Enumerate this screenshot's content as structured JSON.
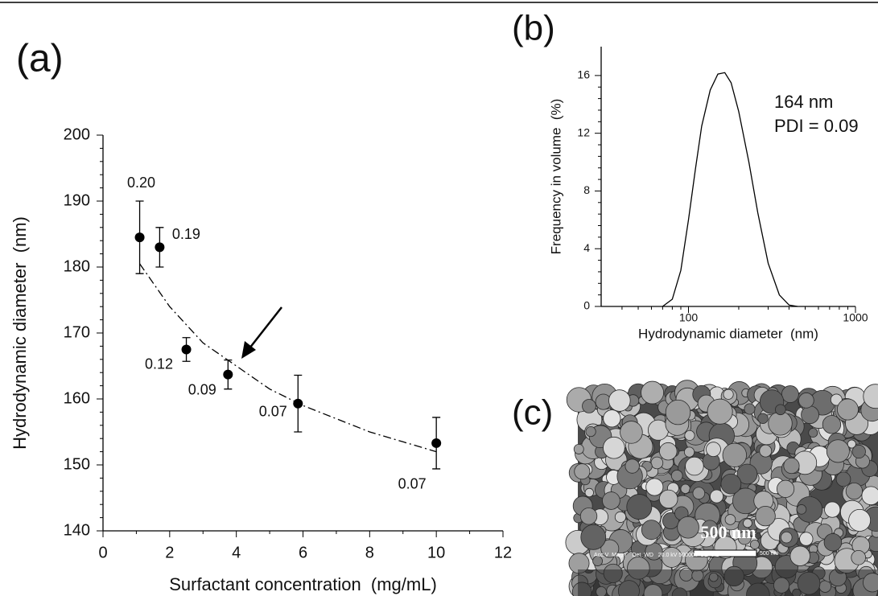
{
  "chart_data": [
    {
      "type": "scatter",
      "panel": "(a)",
      "x_label": "Surfactant concentration  (mg/mL)",
      "y_label": "Hydrodynamic diameter  (nm)",
      "x": [
        1.1,
        1.7,
        2.5,
        3.75,
        5.85,
        10.0
      ],
      "values": [
        184.5,
        183,
        167.5,
        163.7,
        159.3,
        153.3
      ],
      "errors": [
        5.5,
        3,
        1.8,
        2.2,
        4.3,
        3.9
      ],
      "point_labels": [
        "0.20",
        "0.19",
        "0.12",
        "0.09",
        "0.07",
        "0.07"
      ],
      "fit": {
        "x": [
          1.1,
          2,
          3,
          4,
          5,
          6,
          7,
          8,
          9,
          10
        ],
        "values": [
          180.5,
          174,
          168.5,
          165,
          161.5,
          159,
          157,
          155,
          153.5,
          152
        ]
      },
      "color": "#000000",
      "xlim": [
        0,
        12
      ],
      "xticks": [
        0,
        2,
        4,
        6,
        8,
        10,
        12
      ],
      "ylim": [
        140,
        200
      ],
      "yticks": [
        140,
        150,
        160,
        170,
        180,
        190,
        200
      ]
    },
    {
      "type": "line",
      "panel": "(b)",
      "x_label": "Hydrodynamic diameter  (nm)",
      "y_label": "Frequency in volume  (%)",
      "annotations": [
        "164 nm",
        "PDI = 0.09"
      ],
      "x": [
        70,
        80,
        90,
        100,
        110,
        120,
        135,
        150,
        165,
        180,
        200,
        230,
        260,
        300,
        350,
        400,
        450
      ],
      "values": [
        0,
        0.5,
        2.5,
        6,
        9.5,
        12.5,
        15,
        16.1,
        16.2,
        15.5,
        13.5,
        10,
        6.5,
        3,
        0.8,
        0.1,
        0
      ],
      "color": "#000000",
      "xscale": "log",
      "xlim": [
        30,
        1000
      ],
      "xticks": [
        100,
        1000
      ],
      "ylim": [
        0,
        18
      ],
      "yticks": [
        0,
        4,
        8,
        12,
        16
      ]
    }
  ],
  "image_panel": {
    "panel": "(c)",
    "scale_bar": "500 nm",
    "info": "Acc.V  Magn    Det  WD   20.0 kV 50000x  SE  3.2",
    "bar_caption": "500 nm"
  }
}
